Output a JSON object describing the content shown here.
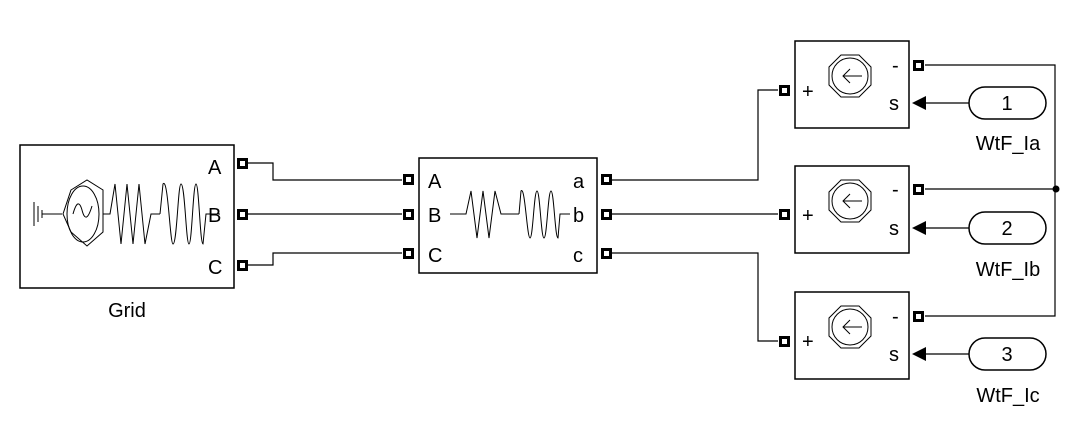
{
  "diagram": {
    "grid_block": {
      "name": "Grid",
      "ports": [
        "A",
        "B",
        "C"
      ]
    },
    "line_block": {
      "in_ports": [
        "A",
        "B",
        "C"
      ],
      "out_ports": [
        "a",
        "b",
        "c"
      ]
    },
    "current_sources": [
      {
        "plus": "+",
        "minus": "-",
        "signal": "s"
      },
      {
        "plus": "+",
        "minus": "-",
        "signal": "s"
      },
      {
        "plus": "+",
        "minus": "-",
        "signal": "s"
      }
    ],
    "inports": [
      {
        "number": "1",
        "label": "WtF_Ia"
      },
      {
        "number": "2",
        "label": "WtF_Ib"
      },
      {
        "number": "3",
        "label": "WtF_Ic"
      }
    ]
  }
}
